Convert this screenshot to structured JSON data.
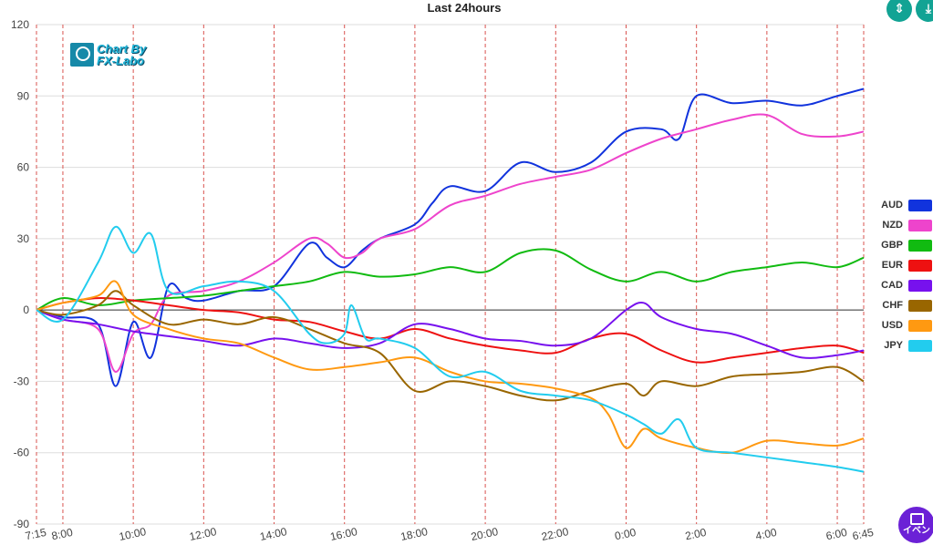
{
  "header": {
    "title": "Last 24hours"
  },
  "logo": {
    "line1": "Chart By",
    "line2": "FX-Labo"
  },
  "buttons": {
    "event_label": "イベン"
  },
  "chart_data": {
    "type": "line",
    "title": "Last 24hours",
    "ylim": [
      -90,
      120
    ],
    "y_ticks": [
      120,
      90,
      60,
      30,
      0,
      -30,
      -60,
      -90
    ],
    "x_range_hours": [
      7.25,
      30.75
    ],
    "x_ticks": [
      {
        "label": "7:15",
        "h": 7.25
      },
      {
        "label": "8:00",
        "h": 8
      },
      {
        "label": "10:00",
        "h": 10
      },
      {
        "label": "12:00",
        "h": 12
      },
      {
        "label": "14:00",
        "h": 14
      },
      {
        "label": "16:00",
        "h": 16
      },
      {
        "label": "18:00",
        "h": 18
      },
      {
        "label": "20:00",
        "h": 20
      },
      {
        "label": "22:00",
        "h": 22
      },
      {
        "label": "0:00",
        "h": 24
      },
      {
        "label": "2:00",
        "h": 26
      },
      {
        "label": "4:00",
        "h": 28
      },
      {
        "label": "6:00",
        "h": 30
      },
      {
        "label": "6:45",
        "h": 30.75
      }
    ],
    "grid": "horizontal solid, vertical dashed red at hour marks",
    "legend_position": "right",
    "series": [
      {
        "name": "AUD",
        "color": "#1133dd",
        "x": [
          7.25,
          8,
          9,
          9.5,
          10,
          10.5,
          11,
          11.5,
          12,
          13,
          14,
          15,
          15.5,
          16,
          16.5,
          17,
          18,
          18.5,
          19,
          20,
          21,
          22,
          23,
          24,
          25,
          25.5,
          26,
          27,
          28,
          29,
          30,
          30.75
        ],
        "y": [
          0,
          -3,
          -6,
          -32,
          -5,
          -20,
          10,
          5,
          4,
          8,
          10,
          28,
          22,
          18,
          25,
          30,
          36,
          45,
          52,
          50,
          62,
          58,
          62,
          75,
          76,
          72,
          90,
          87,
          88,
          86,
          90,
          93
        ]
      },
      {
        "name": "NZD",
        "color": "#ee44cc",
        "x": [
          7.25,
          8,
          9,
          9.5,
          10,
          10.5,
          11,
          12,
          13,
          14,
          15,
          15.5,
          16,
          16.5,
          17,
          18,
          19,
          20,
          21,
          22,
          23,
          24,
          25,
          26,
          27,
          28,
          29,
          30,
          30.75
        ],
        "y": [
          0,
          -4,
          -8,
          -26,
          -10,
          -6,
          6,
          8,
          12,
          20,
          30,
          28,
          22,
          24,
          30,
          34,
          44,
          48,
          53,
          56,
          59,
          66,
          72,
          76,
          80,
          82,
          74,
          73,
          75
        ]
      },
      {
        "name": "GBP",
        "color": "#11bb11",
        "x": [
          7.25,
          8,
          9,
          10,
          11,
          12,
          13,
          14,
          15,
          16,
          17,
          18,
          19,
          20,
          21,
          22,
          23,
          24,
          25,
          26,
          27,
          28,
          29,
          30,
          30.75
        ],
        "y": [
          0,
          5,
          2,
          4,
          5,
          6,
          8,
          10,
          12,
          16,
          14,
          15,
          18,
          16,
          24,
          25,
          17,
          12,
          16,
          12,
          16,
          18,
          20,
          18,
          22
        ]
      },
      {
        "name": "EUR",
        "color": "#ee1111",
        "x": [
          7.25,
          8,
          9,
          10,
          11,
          12,
          13,
          14,
          15,
          16,
          17,
          18,
          19,
          20,
          21,
          22,
          23,
          24,
          25,
          26,
          27,
          28,
          29,
          30,
          30.75
        ],
        "y": [
          0,
          3,
          5,
          4,
          2,
          0,
          -1,
          -4,
          -5,
          -9,
          -12,
          -8,
          -12,
          -15,
          -17,
          -18,
          -12,
          -10,
          -17,
          -22,
          -20,
          -18,
          -16,
          -15,
          -18
        ]
      },
      {
        "name": "CAD",
        "color": "#7711ee",
        "x": [
          7.25,
          8,
          9,
          10,
          11,
          12,
          13,
          14,
          15,
          16,
          17,
          18,
          19,
          20,
          21,
          22,
          23,
          24,
          24.5,
          25,
          26,
          27,
          28,
          29,
          30,
          30.75
        ],
        "y": [
          0,
          -4,
          -6,
          -9,
          -11,
          -13,
          -15,
          -12,
          -14,
          -16,
          -14,
          -6,
          -8,
          -12,
          -13,
          -15,
          -12,
          0,
          3,
          -3,
          -8,
          -10,
          -15,
          -20,
          -19,
          -17
        ]
      },
      {
        "name": "CHF",
        "color": "#996600",
        "x": [
          7.25,
          8,
          9,
          9.5,
          10,
          11,
          12,
          13,
          14,
          15,
          16,
          17,
          18,
          19,
          20,
          21,
          22,
          23,
          24,
          24.5,
          25,
          26,
          27,
          28,
          29,
          30,
          30.75
        ],
        "y": [
          0,
          -2,
          2,
          8,
          2,
          -6,
          -4,
          -6,
          -3,
          -8,
          -14,
          -18,
          -34,
          -30,
          -32,
          -36,
          -38,
          -34,
          -31,
          -36,
          -30,
          -32,
          -28,
          -27,
          -26,
          -24,
          -30
        ]
      },
      {
        "name": "USD",
        "color": "#ff9911",
        "x": [
          7.25,
          8,
          9,
          9.5,
          10,
          11,
          12,
          13,
          14,
          15,
          16,
          17,
          18,
          19,
          20,
          21,
          22,
          23,
          23.5,
          24,
          24.5,
          25,
          26,
          27,
          28,
          29,
          30,
          30.75
        ],
        "y": [
          0,
          3,
          6,
          12,
          -2,
          -8,
          -12,
          -14,
          -20,
          -25,
          -24,
          -22,
          -20,
          -26,
          -30,
          -31,
          -33,
          -37,
          -44,
          -58,
          -50,
          -54,
          -58,
          -60,
          -55,
          -56,
          -57,
          -54
        ]
      },
      {
        "name": "JPY",
        "color": "#22ccee",
        "x": [
          7.25,
          8,
          9,
          9.5,
          10,
          10.5,
          11,
          12,
          13,
          14,
          15,
          15.5,
          16,
          16.2,
          16.6,
          17,
          18,
          19,
          20,
          21,
          22,
          23,
          24,
          24.5,
          25,
          25.5,
          26,
          27,
          28,
          29,
          30,
          30.75
        ],
        "y": [
          0,
          -4,
          20,
          35,
          24,
          32,
          8,
          10,
          12,
          8,
          -10,
          -14,
          -10,
          2,
          -12,
          -12,
          -16,
          -28,
          -26,
          -34,
          -36,
          -38,
          -44,
          -48,
          -52,
          -46,
          -58,
          -60,
          -62,
          -64,
          -66,
          -68
        ]
      }
    ]
  }
}
